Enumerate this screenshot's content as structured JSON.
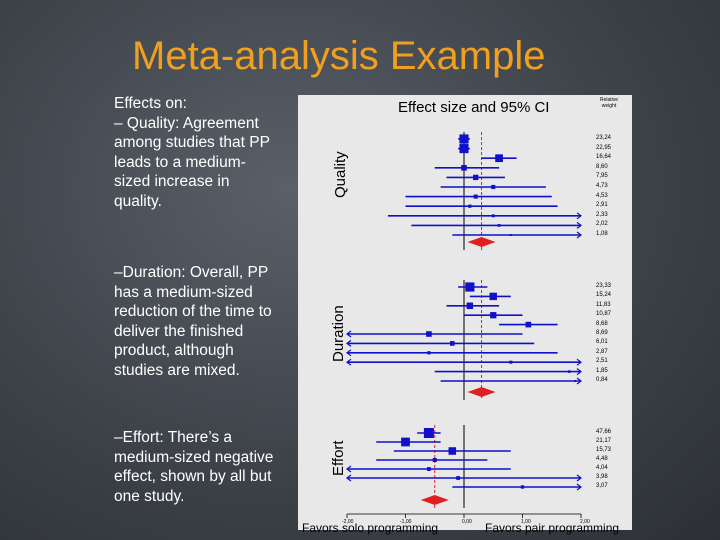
{
  "title": "Meta-analysis Example",
  "bullets": {
    "b1": [
      "Effects on:",
      "– Quality: Agreement",
      "among studies that PP",
      "leads to a medium-",
      "sized increase in",
      "quality."
    ],
    "b2": [
      "–Duration: Overall, PP",
      "has a medium-sized",
      "reduction of the time to",
      "deliver the finished",
      "product, although",
      "studies are mixed."
    ],
    "b3": [
      "–Effort: There’s a",
      "medium-sized negative",
      "effect, shown by all but",
      "one study."
    ]
  },
  "chart": {
    "title": "Effect size and 95% CI",
    "relative_weight_label": "Relative weight",
    "section_labels": {
      "quality": "Quality",
      "duration": "Duration",
      "effort": "Effort"
    },
    "x_ticks": [
      "-2,00",
      "-1,00",
      "0,00",
      "1,00",
      "2,00"
    ],
    "favors_left": "Favors solo programming",
    "favors_right": "Favors pair programming",
    "quality_weights": [
      "23,24",
      "22,95",
      "16,64",
      "8,60",
      "7,95",
      "4,73",
      "4,53",
      "2,91",
      "2,33",
      "2,02",
      "1,08"
    ],
    "duration_weights": [
      "23,33",
      "15,24",
      "11,83",
      "10,87",
      "8,68",
      "8,69",
      "6,01",
      "2,87",
      "2,51",
      "1,85",
      "0,84"
    ],
    "effort_weights": [
      "47,66",
      "21,17",
      "15,73",
      "4,48",
      "4,04",
      "3,98",
      "3,07"
    ],
    "colors": {
      "title": "#f0a020",
      "ci": "#1010c8",
      "pooled": "#e02020"
    }
  },
  "chart_data": {
    "type": "scatter",
    "title": "Effect size and 95% CI",
    "x_range": [
      -2,
      2
    ],
    "sections": [
      {
        "name": "Quality",
        "effects": [
          0.0,
          0.0,
          0.6,
          0.0,
          0.2,
          0.5,
          0.2,
          0.1,
          0.5,
          0.6,
          0.8
        ],
        "ci_low": [
          -0.1,
          -0.1,
          0.3,
          -0.5,
          -0.3,
          -0.4,
          -1.0,
          -1.0,
          -1.3,
          -0.9,
          -0.2
        ],
        "ci_high": [
          0.1,
          0.1,
          0.9,
          0.6,
          0.7,
          1.4,
          1.5,
          1.6,
          2.0,
          2.0,
          2.0
        ],
        "pooled": 0.3
      },
      {
        "name": "Duration",
        "effects": [
          0.1,
          0.5,
          0.1,
          0.5,
          1.1,
          -0.6,
          -0.2,
          -0.6,
          0.8,
          1.8,
          1.9
        ],
        "ci_low": [
          -0.1,
          0.1,
          -0.3,
          0.0,
          0.6,
          -2.0,
          -2.0,
          -2.0,
          -2.0,
          -0.5,
          -0.4
        ],
        "ci_high": [
          0.4,
          0.8,
          0.6,
          1.0,
          1.6,
          1.0,
          1.2,
          1.6,
          2.0,
          2.0,
          2.0
        ],
        "pooled": 0.3
      },
      {
        "name": "Effort",
        "effects": [
          -0.6,
          -1.0,
          -0.2,
          -0.5,
          -0.6,
          -0.1,
          1.0
        ],
        "ci_low": [
          -0.8,
          -1.5,
          -1.2,
          -1.5,
          -2.0,
          -2.0,
          -0.2
        ],
        "ci_high": [
          -0.4,
          -0.4,
          0.8,
          0.4,
          0.8,
          2.0,
          2.0
        ],
        "pooled": -0.5
      }
    ]
  }
}
